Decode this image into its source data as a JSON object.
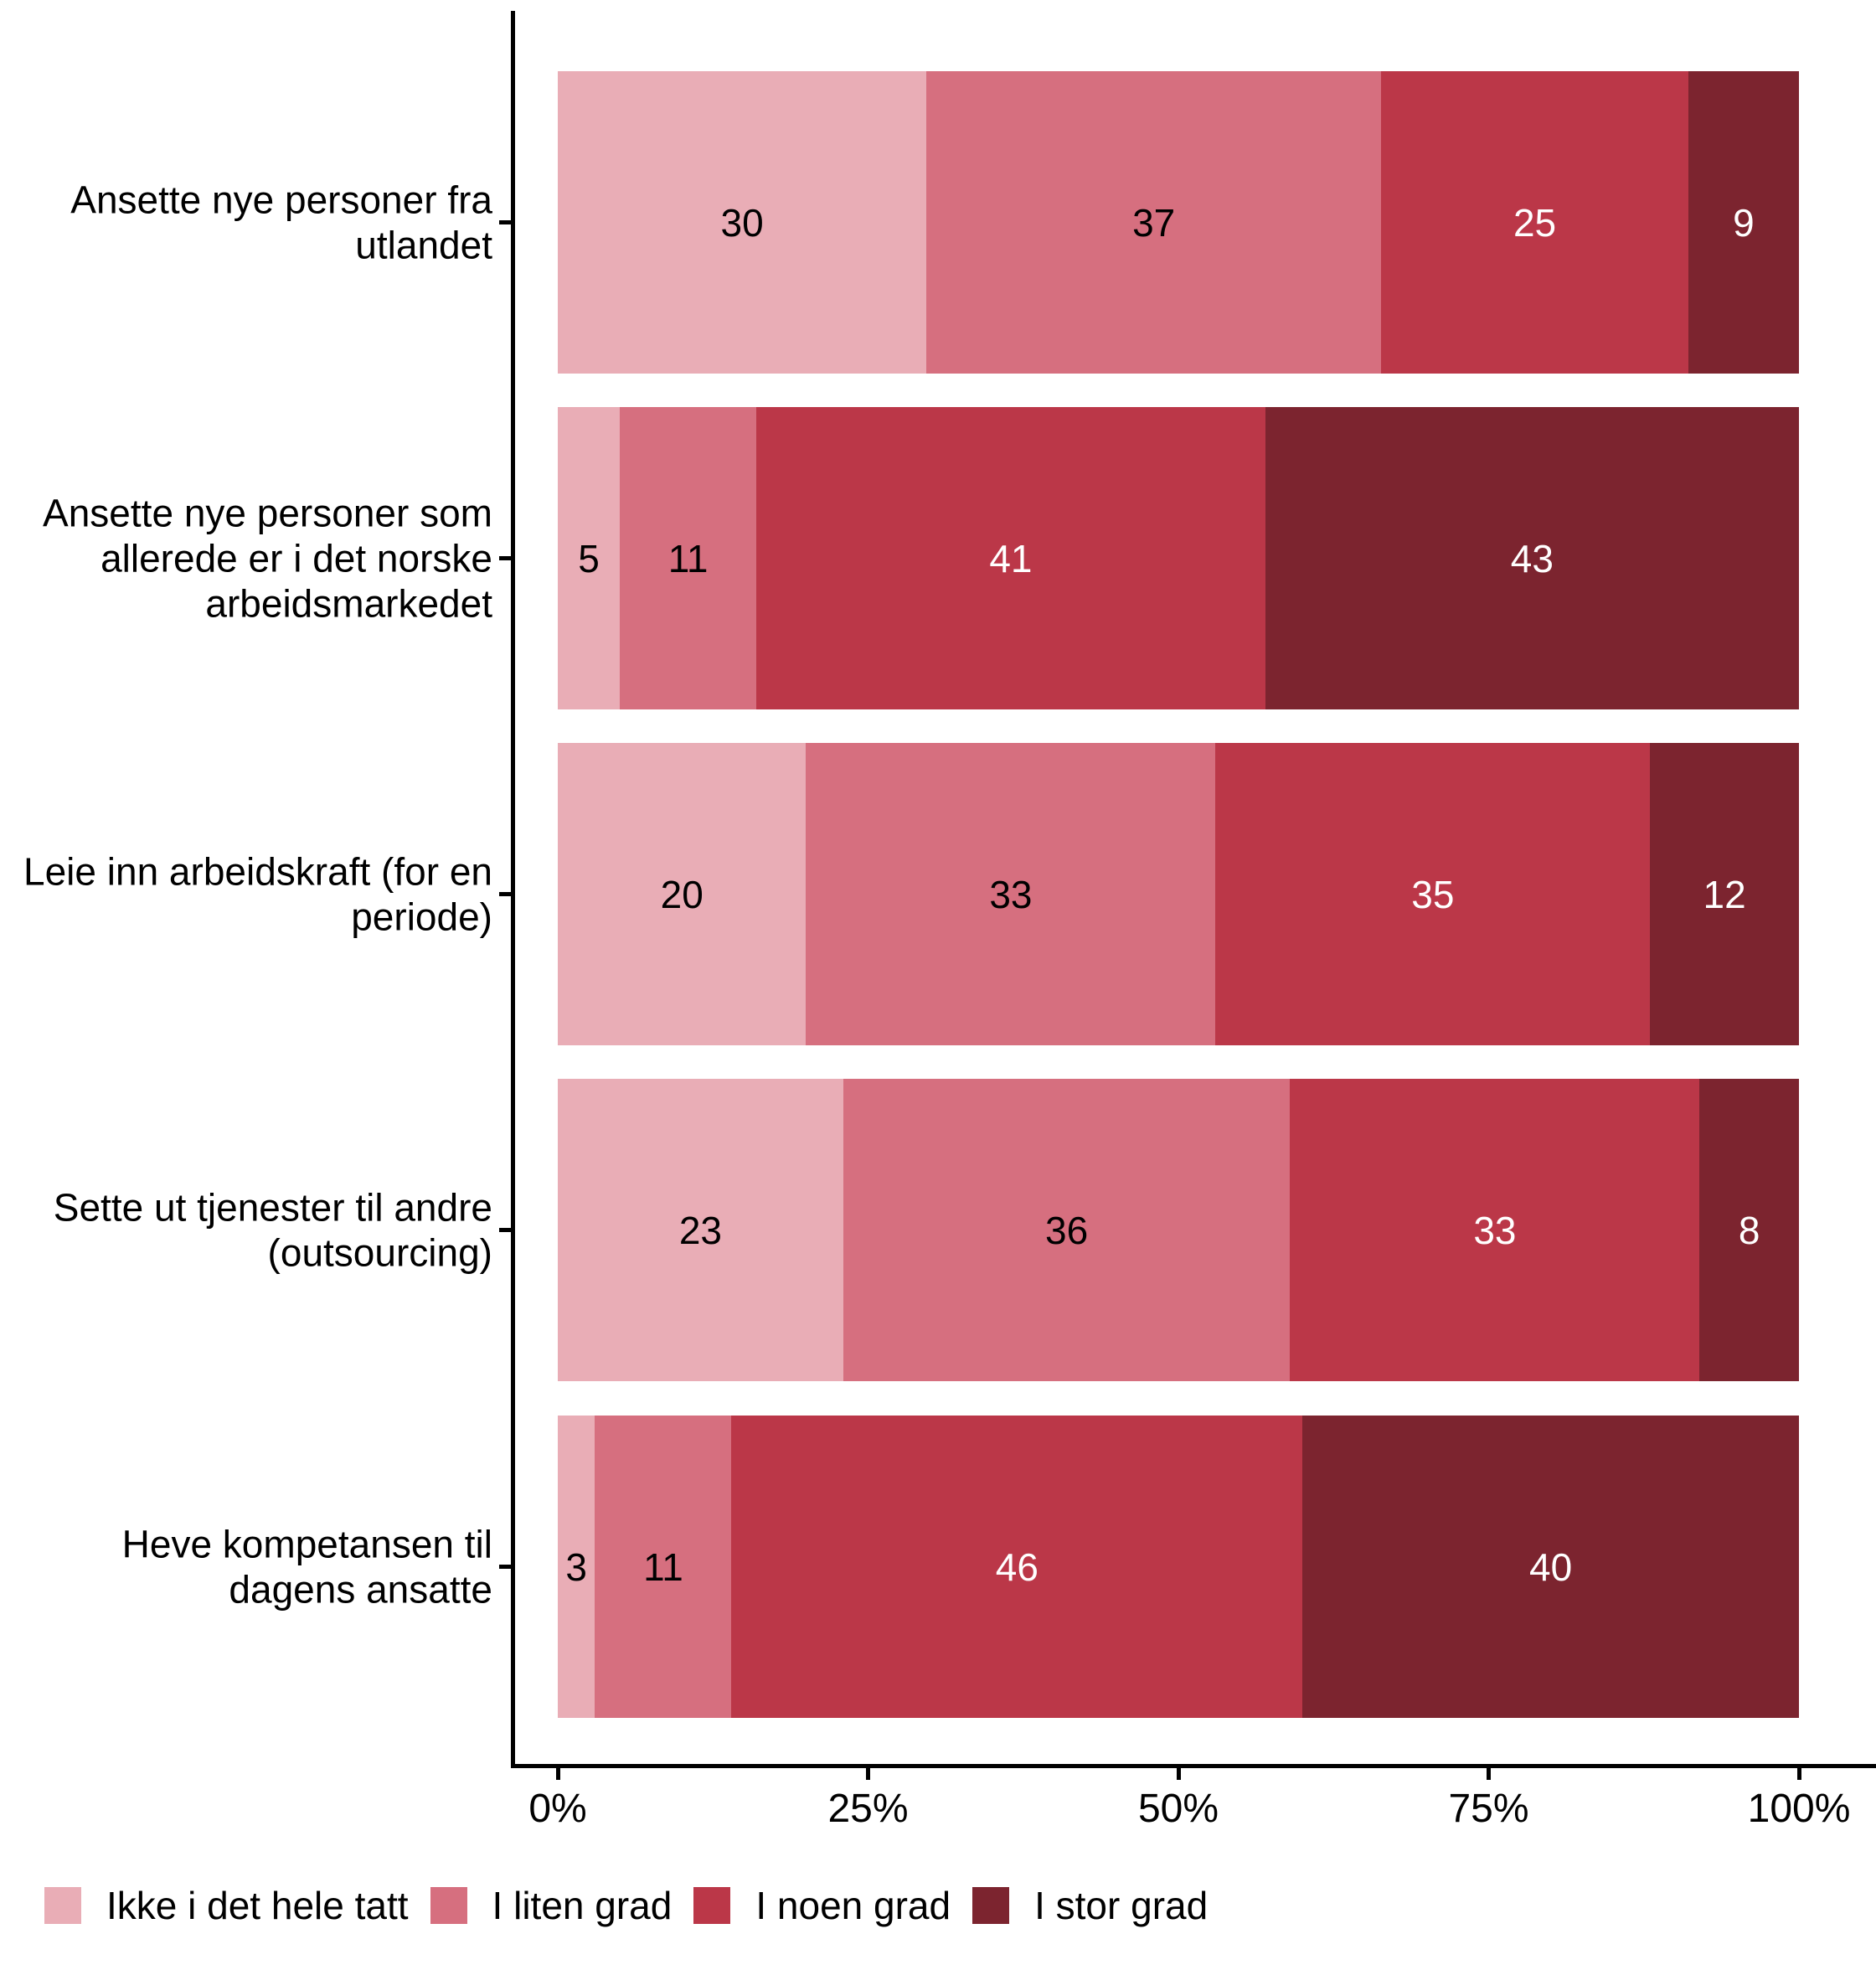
{
  "chart_data": {
    "type": "bar",
    "orientation": "horizontal",
    "stacked": true,
    "unit": "percent",
    "title": "",
    "xlabel": "",
    "ylabel": "",
    "categories": [
      "Ansette nye personer fra utlandet",
      "Ansette nye personer som allerede er i det norske arbeidsmarkedet",
      "Leie inn arbeidskraft (for en periode)",
      "Sette ut tjenester til andre (outsourcing)",
      "Heve kompetansen til dagens ansatte"
    ],
    "series": [
      {
        "name": "Ikke i det hele tatt",
        "color": "#E9ADB6",
        "label_color": "#000000",
        "values": [
          30,
          5,
          20,
          23,
          3
        ]
      },
      {
        "name": "I liten grad",
        "color": "#D66F7F",
        "label_color": "#000000",
        "values": [
          37,
          11,
          33,
          36,
          11
        ]
      },
      {
        "name": "I noen grad",
        "color": "#BB3748",
        "label_color": "#FFFFFF",
        "values": [
          25,
          41,
          35,
          33,
          46
        ]
      },
      {
        "name": "I stor grad",
        "color": "#7C242F",
        "label_color": "#FFFFFF",
        "values": [
          9,
          43,
          12,
          8,
          40
        ]
      }
    ],
    "x_axis": {
      "range": [
        0,
        100
      ],
      "tick_values": [
        0,
        25,
        50,
        75,
        100
      ],
      "tick_labels": [
        "0%",
        "25%",
        "50%",
        "75%",
        "100%"
      ],
      "grid": false
    },
    "legend": {
      "position": "bottom-left",
      "items": [
        "Ikke i det hele tatt",
        "I liten grad",
        "I noen grad",
        "I stor grad"
      ]
    },
    "axis_color": "#000000",
    "background_color": "#FFFFFF"
  }
}
